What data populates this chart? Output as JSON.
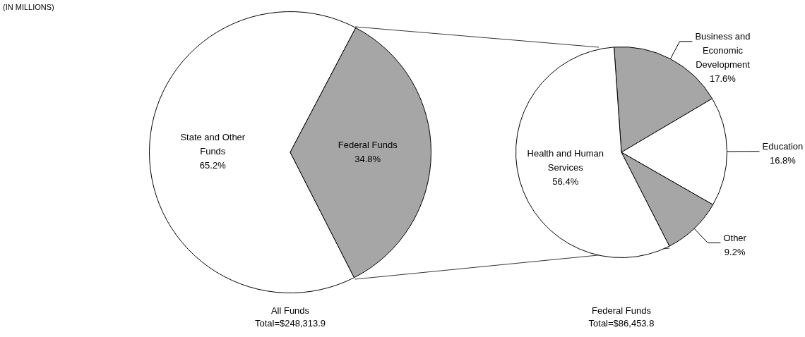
{
  "chart_data": [
    {
      "type": "pie",
      "title": "All Funds",
      "subtitle": "Total=$248,313.9",
      "annotations": [
        "(IN MILLIONS)"
      ],
      "categories": [
        "State and Other Funds",
        "Federal Funds"
      ],
      "values": [
        65.2,
        34.8
      ],
      "colors": [
        "#ffffff",
        "#a6a6a6"
      ],
      "value_labels": [
        "65.2%",
        "34.8%"
      ]
    },
    {
      "type": "pie",
      "title": "Federal Funds",
      "subtitle": "Total=$86,453.8",
      "categories": [
        "Business and Economic Development",
        "Education",
        "Other",
        "Health and Human Services"
      ],
      "values": [
        17.6,
        16.8,
        9.2,
        56.4
      ],
      "colors": [
        "#a6a6a6",
        "#ffffff",
        "#a6a6a6",
        "#ffffff"
      ],
      "value_labels": [
        "17.6%",
        "16.8%",
        "9.2%",
        "56.4%"
      ]
    }
  ]
}
